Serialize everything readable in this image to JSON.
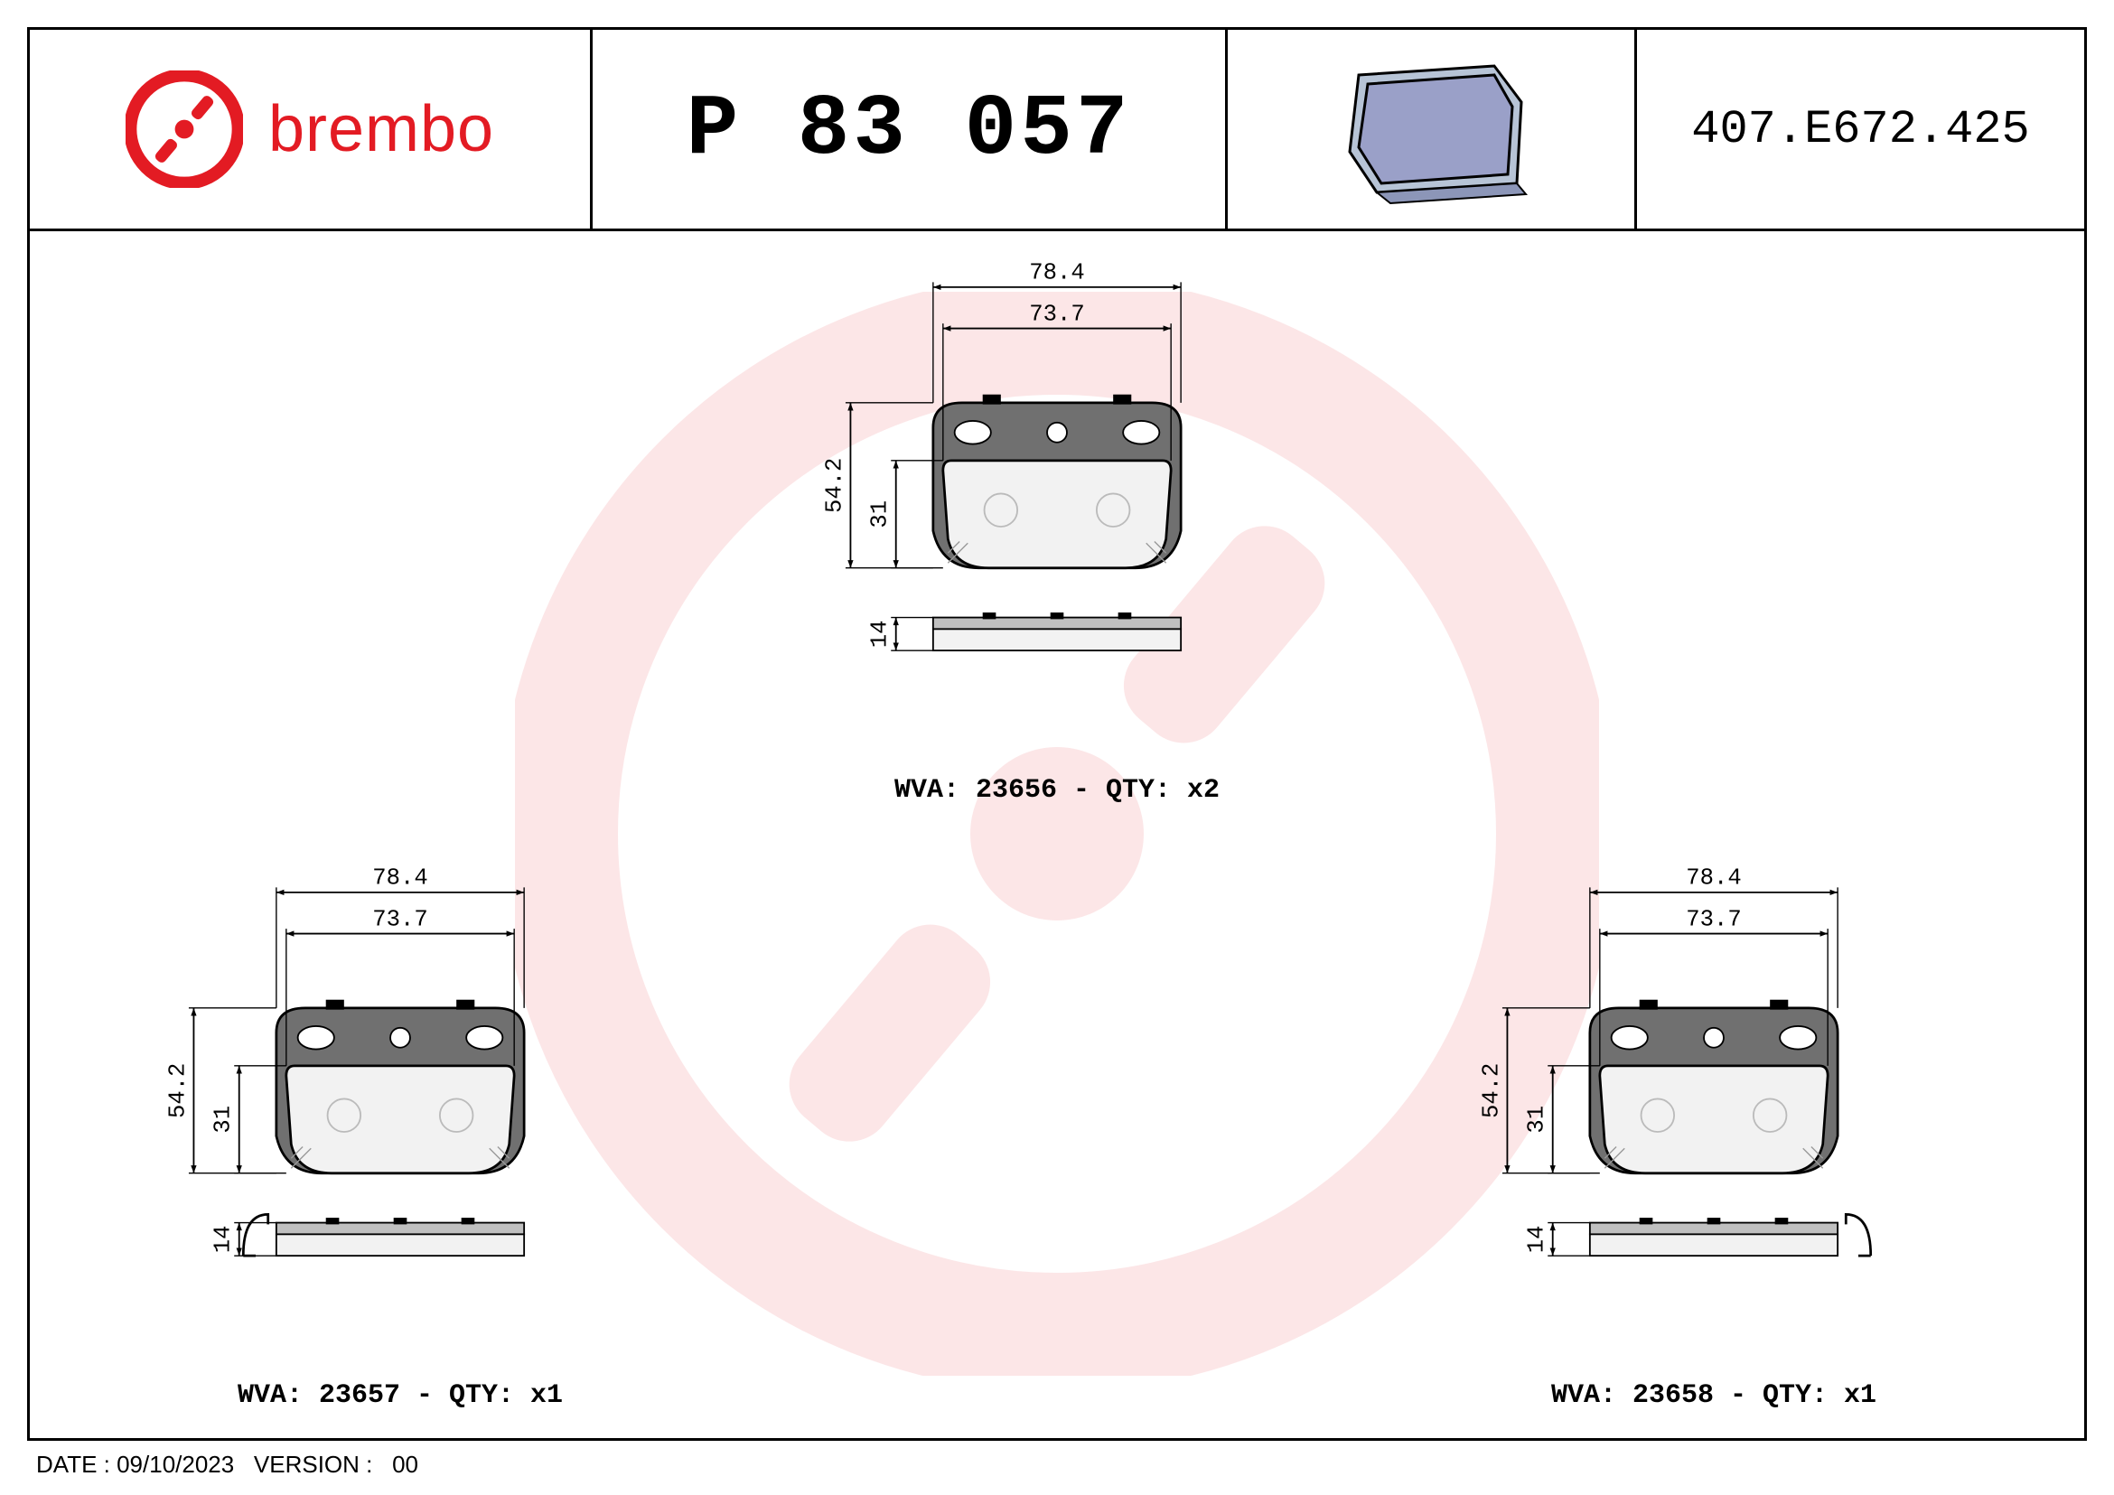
{
  "brand": {
    "name": "brembo",
    "logo_color": "#e31b23",
    "text_color": "#e31b23",
    "font_size_pt": 54
  },
  "part_number": "P 83 057",
  "drawing_number": "407.E672.425",
  "iso_view": {
    "friction_color": "#9aa0c8",
    "backplate_color": "#b7c4d6",
    "edge_color": "#000000"
  },
  "watermark_color": "#e31b23",
  "dimension_style": {
    "line_color": "#000000",
    "line_width": 2,
    "arrow_size": 10,
    "font_family": "Courier New",
    "font_size_pt": 21
  },
  "pad_drawing_style": {
    "backplate_fill": "#707070",
    "backplate_stroke": "#000000",
    "friction_fill": "#f2f2f2",
    "friction_stroke": "#000000",
    "hole_fill": "#ffffff",
    "shim_fill": "#c0c0c0",
    "line_width": 3
  },
  "figures": [
    {
      "id": "top",
      "wva": "23656",
      "qty": "x2",
      "clip_side": "none",
      "dims": {
        "width_overall": 78.4,
        "width_friction": 73.7,
        "height_overall": 54.2,
        "height_friction": 31,
        "thickness": 14
      }
    },
    {
      "id": "left",
      "wva": "23657",
      "qty": "x1",
      "clip_side": "left",
      "dims": {
        "width_overall": 78.4,
        "width_friction": 73.7,
        "height_overall": 54.2,
        "height_friction": 31,
        "thickness": 14
      }
    },
    {
      "id": "right",
      "wva": "23658",
      "qty": "x1",
      "clip_side": "right",
      "dims": {
        "width_overall": 78.4,
        "width_friction": 73.7,
        "height_overall": 54.2,
        "height_friction": 31,
        "thickness": 14
      }
    }
  ],
  "footer": {
    "date_label": "DATE :",
    "date_value": "09/10/2023",
    "version_label": "VERSION :",
    "version_value": "00"
  },
  "caption_template": {
    "wva_label": "WVA:",
    "qty_label": "- QTY:"
  }
}
